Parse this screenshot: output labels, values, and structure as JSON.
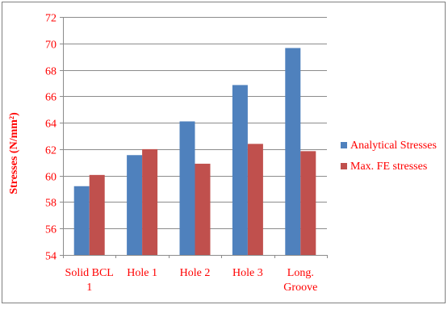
{
  "chart_data": {
    "type": "bar",
    "categories": [
      "Solid BCL 1",
      "Hole 1",
      "Hole 2",
      "Hole 3",
      "Long. Groove"
    ],
    "category_lines": [
      [
        "Solid BCL",
        "1"
      ],
      [
        "Hole 1"
      ],
      [
        "Hole 2"
      ],
      [
        "Hole 3"
      ],
      [
        "Long.",
        "Groove"
      ]
    ],
    "series": [
      {
        "name": "Analytical Stresses",
        "values": [
          59.2,
          61.55,
          64.1,
          66.85,
          69.65
        ],
        "color": "#4f81bd"
      },
      {
        "name": "Max. FE stresses",
        "values": [
          60.05,
          62.0,
          60.9,
          62.4,
          61.85
        ],
        "color": "#c0504d"
      }
    ],
    "title": "",
    "xlabel": "",
    "ylabel": "Stresses (N/mm²)",
    "ylim": [
      54,
      72
    ],
    "yticks": [
      54,
      56,
      58,
      60,
      62,
      64,
      66,
      68,
      70,
      72
    ],
    "grid": true,
    "legend_position": "right",
    "colors": {
      "axis_label": "#ff0000",
      "tick_label": "#ff0000",
      "gridline": "#8c8c8c",
      "frame": "#808080"
    }
  }
}
